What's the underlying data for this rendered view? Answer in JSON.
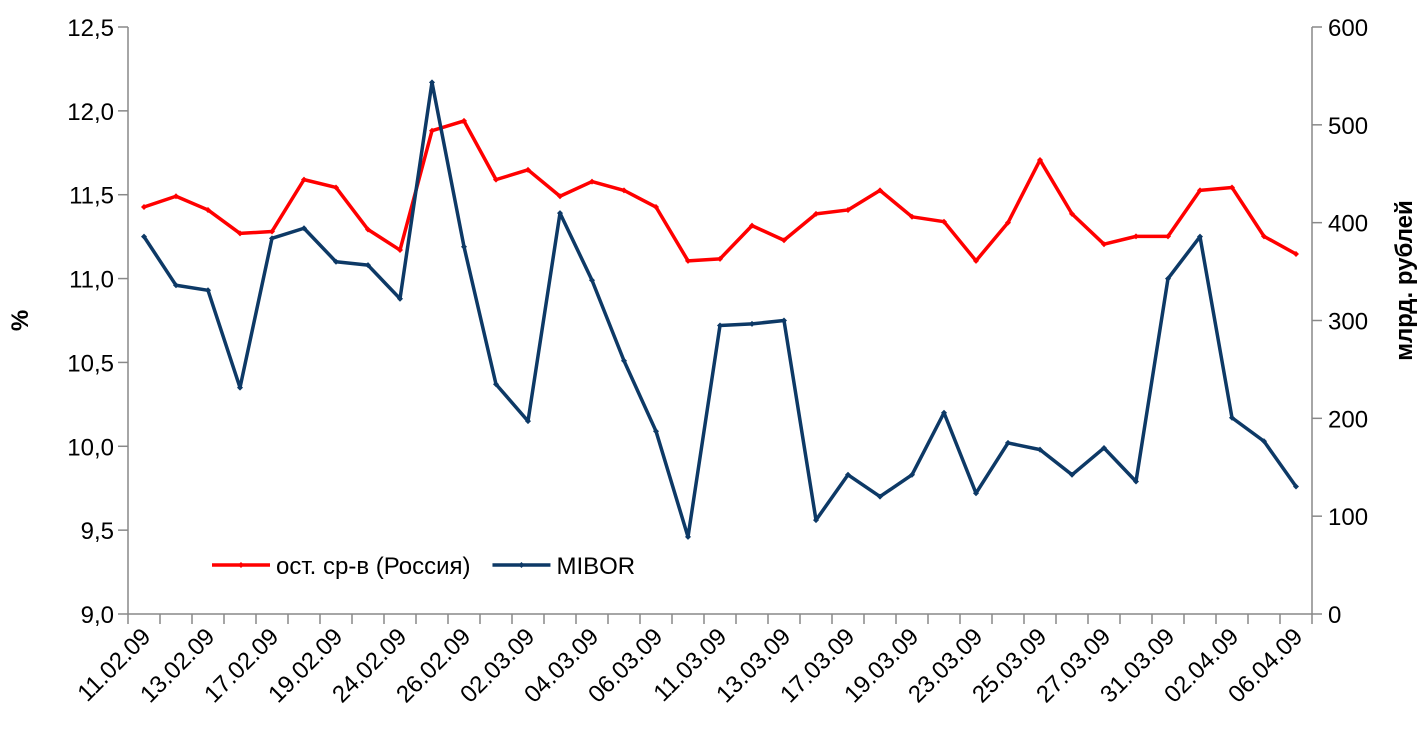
{
  "chart_data": {
    "type": "line",
    "categories": [
      "11.02.09",
      null,
      "13.02.09",
      null,
      "17.02.09",
      null,
      "19.02.09",
      null,
      "24.02.09",
      null,
      "26.02.09",
      null,
      "02.03.09",
      null,
      "04.03.09",
      null,
      "06.03.09",
      null,
      "11.03.09",
      null,
      "13.03.09",
      null,
      "17.03.09",
      null,
      "19.03.09",
      null,
      "23.03.09",
      null,
      "25.03.09",
      null,
      "27.03.09",
      null,
      "31.03.09",
      null,
      "02.04.09",
      null,
      "06.04.09"
    ],
    "series": [
      {
        "name": "ост. ср-в (Россия)",
        "color": "#ff0000",
        "axis": "y2",
        "values": [
          416,
          427,
          413,
          389,
          391,
          444,
          436,
          393,
          372,
          494,
          504,
          444,
          454,
          427,
          442,
          433,
          416,
          361,
          363,
          397,
          382,
          409,
          413,
          433,
          406,
          401,
          361,
          400,
          464,
          409,
          378,
          386,
          386,
          433,
          436,
          386,
          368
        ]
      },
      {
        "name": "MIBOR",
        "color": "#0d3966",
        "values": [
          11.25,
          10.96,
          10.93,
          10.35,
          11.24,
          11.3,
          11.1,
          11.08,
          10.88,
          12.17,
          11.19,
          10.37,
          10.15,
          11.39,
          10.99,
          10.51,
          10.09,
          9.46,
          10.72,
          10.73,
          10.75,
          9.56,
          9.83,
          9.7,
          9.83,
          10.2,
          9.72,
          10.02,
          9.98,
          9.83,
          9.99,
          9.79,
          11.0,
          11.25,
          10.17,
          10.03,
          9.76
        ]
      }
    ],
    "ylabel": "%",
    "y2label": "млрд. рублей",
    "ylim": [
      9,
      12.5
    ],
    "yticks": [
      {
        "value": 9,
        "label": "9,0"
      },
      {
        "value": 9.5,
        "label": "9,5"
      },
      {
        "value": 10,
        "label": "10,0"
      },
      {
        "value": 10.5,
        "label": "10,5"
      },
      {
        "value": 11,
        "label": "11,0"
      },
      {
        "value": 11.5,
        "label": "11,5"
      },
      {
        "value": 12,
        "label": "12,0"
      },
      {
        "value": 12.5,
        "label": "12,5"
      }
    ],
    "y2lim": [
      0,
      600
    ],
    "y2ticks": [
      0,
      100,
      200,
      300,
      400,
      500,
      600
    ],
    "grid": false,
    "legend": "lower left"
  }
}
